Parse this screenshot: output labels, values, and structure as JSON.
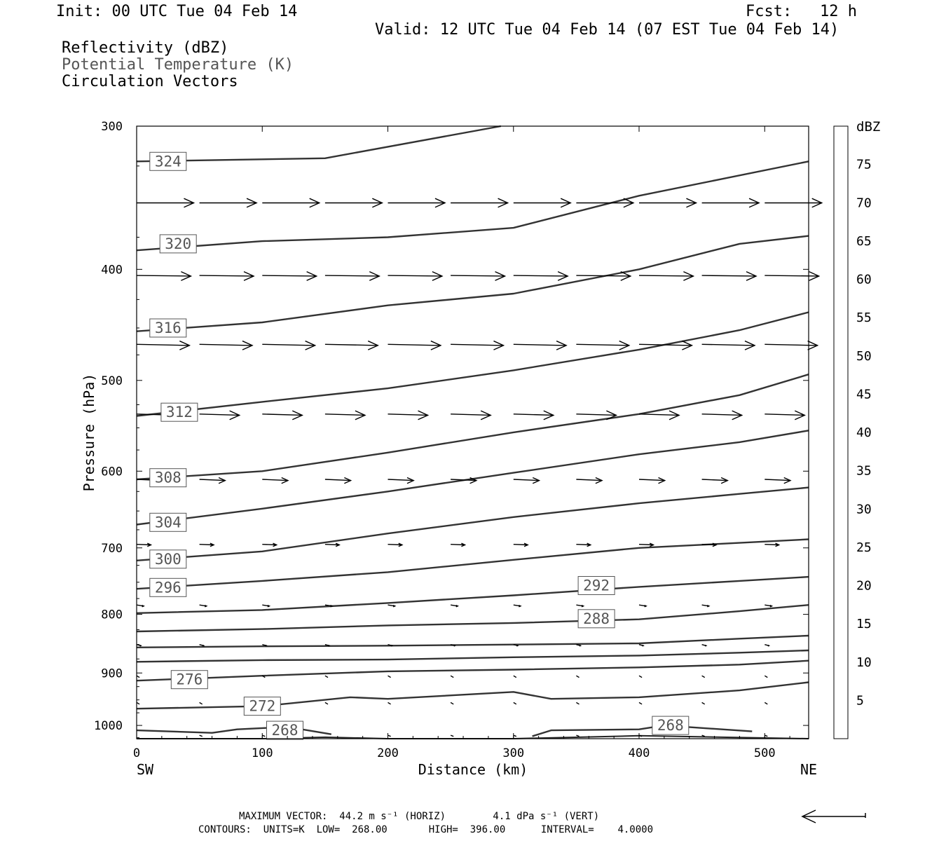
{
  "header": {
    "init": "Init: 00 UTC Tue 04 Feb 14",
    "fcst": "Fcst:   12 h",
    "valid": "Valid: 12 UTC Tue 04 Feb 14 (07 EST Tue 04 Feb 14)",
    "fields": [
      "Reflectivity (dBZ)",
      "Potential Temperature (K)",
      "Circulation Vectors"
    ],
    "field_colors": [
      "#000000",
      "#555555",
      "#000000"
    ]
  },
  "footer": {
    "line1": "MAXIMUM VECTOR:  44.2 m s⁻¹ (HORIZ)        4.1 dPa s⁻¹ (VERT)",
    "line2": "CONTOURS:  UNITS=K  LOW=  268.00       HIGH=  396.00      INTERVAL=    4.0000"
  },
  "chart_data": {
    "type": "cross-section",
    "xlabel": "Distance (km)",
    "ylabel": "Pressure (hPa)",
    "x_left_label": "SW",
    "x_right_label": "NE",
    "xlim": [
      0,
      535
    ],
    "ylim": [
      300,
      1027
    ],
    "y_scale": "log-pressure (inverted)",
    "xticks": [
      0,
      100,
      200,
      300,
      400,
      500
    ],
    "yticks": [
      300,
      400,
      500,
      600,
      700,
      800,
      900,
      1000
    ],
    "colorbar": {
      "title": "dBZ",
      "labels": [
        "5",
        "10",
        "15",
        "20",
        "25",
        "30",
        "35",
        "40",
        "45",
        "50",
        "55",
        "60",
        "65",
        "70",
        "75"
      ],
      "colors": [
        "#ffffff",
        "#00e5e5",
        "#0099e6",
        "#0000e6",
        "#00ff00",
        "#00c800",
        "#008800",
        "#ffff00",
        "#e6b800",
        "#ff8800",
        "#ff0000",
        "#d70000",
        "#b00000",
        "#ff00ff",
        "#9955cc",
        "#ffffff"
      ]
    },
    "theta_contours": [
      {
        "value": 324,
        "label": "324",
        "points": [
          [
            0,
            322
          ],
          [
            150,
            320
          ],
          [
            290,
            300
          ]
        ],
        "label_at": [
          25,
          322
        ]
      },
      {
        "value": 320,
        "label": "320",
        "points": [
          [
            0,
            385
          ],
          [
            100,
            378
          ],
          [
            200,
            375
          ],
          [
            300,
            368
          ],
          [
            400,
            345
          ],
          [
            535,
            322
          ]
        ],
        "label_at": [
          33,
          380
        ]
      },
      {
        "value": 316,
        "label": "316",
        "points": [
          [
            0,
            453
          ],
          [
            100,
            445
          ],
          [
            200,
            430
          ],
          [
            300,
            420
          ],
          [
            400,
            400
          ],
          [
            480,
            380
          ],
          [
            535,
            374
          ]
        ],
        "label_at": [
          25,
          450
        ]
      },
      {
        "value": 312,
        "label": "312",
        "points": [
          [
            0,
            537
          ],
          [
            100,
            522
          ],
          [
            200,
            508
          ],
          [
            300,
            490
          ],
          [
            400,
            470
          ],
          [
            480,
            452
          ],
          [
            535,
            436
          ]
        ],
        "label_at": [
          34,
          533
        ]
      },
      {
        "value": 308,
        "label": "308",
        "points": [
          [
            0,
            610
          ],
          [
            100,
            600
          ],
          [
            200,
            578
          ],
          [
            300,
            555
          ],
          [
            400,
            535
          ],
          [
            480,
            515
          ],
          [
            535,
            494
          ]
        ],
        "label_at": [
          25,
          608
        ]
      },
      {
        "value": 304,
        "label": "304",
        "points": [
          [
            0,
            668
          ],
          [
            100,
            647
          ],
          [
            200,
            625
          ],
          [
            300,
            602
          ],
          [
            400,
            580
          ],
          [
            480,
            566
          ],
          [
            535,
            553
          ]
        ],
        "label_at": [
          25,
          665
        ]
      },
      {
        "value": 300,
        "label": "300",
        "points": [
          [
            0,
            718
          ],
          [
            100,
            705
          ],
          [
            200,
            680
          ],
          [
            300,
            658
          ],
          [
            400,
            640
          ],
          [
            480,
            628
          ],
          [
            535,
            620
          ]
        ],
        "label_at": [
          25,
          716
        ]
      },
      {
        "value": 296,
        "label": "296",
        "points": [
          [
            0,
            760
          ],
          [
            100,
            748
          ],
          [
            200,
            735
          ],
          [
            300,
            717
          ],
          [
            400,
            700
          ],
          [
            480,
            693
          ],
          [
            535,
            688
          ]
        ],
        "label_at": [
          25,
          758
        ]
      },
      {
        "value": 292,
        "label": "292",
        "points": [
          [
            0,
            798
          ],
          [
            100,
            793
          ],
          [
            200,
            782
          ],
          [
            300,
            770
          ],
          [
            400,
            757
          ],
          [
            480,
            748
          ],
          [
            535,
            742
          ]
        ],
        "label_at": [
          366,
          755
        ]
      },
      {
        "value": 288,
        "label": "288",
        "points": [
          [
            0,
            828
          ],
          [
            100,
            824
          ],
          [
            200,
            818
          ],
          [
            300,
            814
          ],
          [
            400,
            808
          ],
          [
            480,
            795
          ],
          [
            535,
            785
          ]
        ],
        "label_at": [
          366,
          807
        ]
      },
      {
        "value": 284,
        "label": "",
        "points": [
          [
            0,
            855
          ],
          [
            100,
            853
          ],
          [
            200,
            852
          ],
          [
            300,
            850
          ],
          [
            400,
            848
          ],
          [
            480,
            840
          ],
          [
            535,
            835
          ]
        ],
        "label_at": null
      },
      {
        "value": 280,
        "label": "",
        "points": [
          [
            0,
            880
          ],
          [
            100,
            877
          ],
          [
            200,
            876
          ],
          [
            300,
            872
          ],
          [
            400,
            869
          ],
          [
            480,
            864
          ],
          [
            535,
            860
          ]
        ],
        "label_at": null
      },
      {
        "value": 276,
        "label": "276",
        "points": [
          [
            0,
            914
          ],
          [
            100,
            905
          ],
          [
            200,
            897
          ],
          [
            300,
            894
          ],
          [
            400,
            890
          ],
          [
            480,
            885
          ],
          [
            535,
            878
          ]
        ],
        "label_at": [
          42,
          912
        ]
      },
      {
        "value": 272,
        "label": "272",
        "points": [
          [
            0,
            967
          ],
          [
            100,
            962
          ],
          [
            170,
            945
          ],
          [
            200,
            948
          ],
          [
            300,
            935
          ],
          [
            330,
            948
          ],
          [
            400,
            945
          ],
          [
            480,
            932
          ],
          [
            535,
            917
          ]
        ],
        "label_at": [
          100,
          962
        ]
      },
      {
        "value": 268,
        "label": "268",
        "points": [
          [
            0,
            1010
          ],
          [
            60,
            1015
          ],
          [
            80,
            1008
          ],
          [
            120,
            1003
          ],
          [
            155,
            1018
          ]
        ],
        "label_at": [
          118,
          1010
        ]
      },
      {
        "value": 268,
        "label": "268",
        "points": [
          [
            315,
            1022
          ],
          [
            330,
            1010
          ],
          [
            400,
            1008
          ],
          [
            420,
            1000
          ],
          [
            490,
            1012
          ]
        ],
        "label_at": [
          425,
          1000
        ]
      }
    ],
    "vectors": {
      "levels": [
        {
          "p": 350,
          "xs": [
            0,
            50,
            100,
            150,
            200,
            250,
            300,
            350,
            400,
            450,
            500
          ],
          "u": 40,
          "w": 0
        },
        {
          "p": 405,
          "xs": [
            0,
            50,
            100,
            150,
            200,
            250,
            300,
            350,
            400,
            450,
            500
          ],
          "u": 38,
          "w": 0.1
        },
        {
          "p": 465,
          "xs": [
            0,
            50,
            100,
            150,
            200,
            250,
            300,
            350,
            400,
            450,
            500
          ],
          "u": 37,
          "w": 0.2
        },
        {
          "p": 535,
          "xs": [
            0,
            50,
            100,
            150,
            200,
            250,
            300,
            350,
            400,
            450,
            500
          ],
          "u": 28,
          "w": 0.2
        },
        {
          "p": 610,
          "xs": [
            0,
            50,
            100,
            150,
            200,
            250,
            300,
            350,
            400,
            450,
            500
          ],
          "u": 18,
          "w": 0.2
        },
        {
          "p": 695,
          "xs": [
            0,
            50,
            100,
            150,
            200,
            250,
            300,
            350,
            400,
            450,
            500
          ],
          "u": 10,
          "w": 0.1
        },
        {
          "p": 785,
          "xs": [
            0,
            50,
            100,
            150,
            200,
            250,
            300,
            350,
            400,
            450,
            500
          ],
          "u": 5,
          "w": 0.2
        },
        {
          "p": 850,
          "xs": [
            0,
            50,
            100,
            150,
            200,
            250,
            300,
            350,
            400,
            450,
            500
          ],
          "u": 3,
          "w": 0.2
        },
        {
          "p": 905,
          "xs": [
            0,
            50,
            100,
            150,
            200,
            250,
            300,
            350,
            400,
            450,
            500
          ],
          "u": 2,
          "w": 0.3
        },
        {
          "p": 955,
          "xs": [
            0,
            50,
            100,
            150,
            200,
            250,
            300,
            350,
            400,
            450,
            500
          ],
          "u": 2,
          "w": 0.3
        },
        {
          "p": 1020,
          "xs": [
            50,
            100,
            200,
            250,
            300,
            350,
            400,
            450,
            500
          ],
          "u": 2,
          "w": 0.2
        }
      ]
    },
    "terrain": [
      [
        0,
        1027
      ],
      [
        100,
        1027
      ],
      [
        150,
        1024
      ],
      [
        200,
        1027
      ],
      [
        300,
        1027
      ],
      [
        400,
        1021
      ],
      [
        535,
        1027
      ]
    ]
  }
}
